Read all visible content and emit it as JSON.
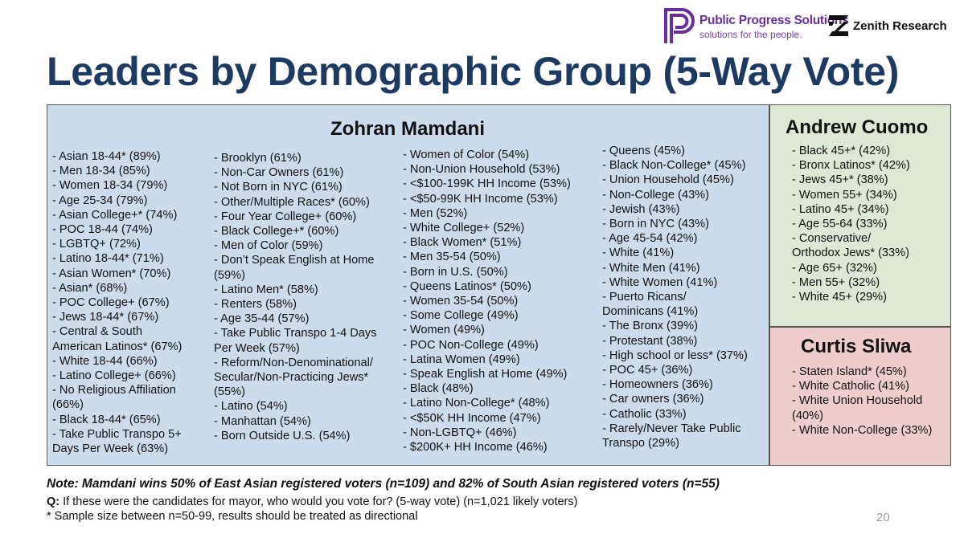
{
  "logos": {
    "pps_name": "Public Progress Solutions",
    "pps_tagline": "solutions for the people.",
    "zenith_name": "Zenith Research"
  },
  "title": "Leaders by Demographic Group (5-Way Vote)",
  "mamdani": {
    "name": "Zohran Mamdani",
    "col1": [
      "- Asian 18-44* (89%)",
      "- Men 18-34 (85%)",
      "- Women 18-34 (79%)",
      "- Age 25-34 (79%)",
      "- Asian College+* (74%)",
      "- POC 18-44 (74%)",
      "- LGBTQ+ (72%)",
      "- Latino 18-44* (71%)",
      "- Asian Women* (70%)",
      "- Asian* (68%)",
      "- POC College+ (67%)",
      "- Jews 18-44* (67%)",
      "- Central & South",
      "American Latinos* (67%)",
      "- White 18-44 (66%)",
      "- Latino College+ (66%)",
      "- No Religious Affiliation",
      "(66%)",
      "- Black 18-44* (65%)",
      "- Take Public Transpo 5+",
      "Days Per Week (63%)"
    ],
    "col2": [
      "- Brooklyn (61%)",
      "- Non-Car Owners (61%)",
      "- Not Born in NYC (61%)",
      "- Other/Multiple Races* (60%)",
      "- Four Year College+ (60%)",
      "- Black College+* (60%)",
      "- Men of Color (59%)",
      "- Don’t Speak English at Home",
      "(59%)",
      "- Latino Men* (58%)",
      "- Renters (58%)",
      "- Age 35-44 (57%)",
      "- Take Public Transpo 1-4 Days",
      "Per Week (57%)",
      "- Reform/Non-Denominational/",
      "Secular/Non-Practicing Jews*",
      "(55%)",
      "- Latino (54%)",
      "- Manhattan (54%)",
      "- Born Outside U.S. (54%)"
    ],
    "col3": [
      "- Women of Color (54%)",
      "- Non-Union Household (53%)",
      "- <$100-199K HH Income (53%)",
      "- <$50-99K HH Income (53%)",
      "- Men (52%)",
      "- White College+ (52%)",
      "- Black Women* (51%)",
      "- Men 35-54 (50%)",
      "- Born in U.S. (50%)",
      "- Queens Latinos* (50%)",
      "- Women 35-54 (50%)",
      "- Some College (49%)",
      "- Women (49%)",
      "- POC Non-College (49%)",
      "- Latina Women (49%)",
      "- Speak English at Home (49%)",
      "- Black (48%)",
      "- Latino Non-College* (48%)",
      "- <$50K HH Income (47%)",
      "- Non-LGBTQ+ (46%)",
      "- $200K+ HH Income (46%)"
    ],
    "col4": [
      "- Queens (45%)",
      "- Black Non-College* (45%)",
      "- Union Household (45%)",
      "- Non-College (43%)",
      "- Jewish (43%)",
      "- Born in NYC (43%)",
      "- Age 45-54 (42%)",
      "- White (41%)",
      "- White Men (41%)",
      "- White Women (41%)",
      "- Puerto Ricans/",
      "Dominicans (41%)",
      "- The Bronx (39%)",
      "- Protestant (38%)",
      "- High school or less* (37%)",
      "- POC 45+ (36%)",
      "- Homeowners (36%)",
      "- Car owners (36%)",
      "- Catholic (33%)",
      "- Rarely/Never Take Public",
      "Transpo (29%)"
    ]
  },
  "cuomo": {
    "name": "Andrew Cuomo",
    "items": [
      "- Black 45+* (42%)",
      "- Bronx Latinos* (42%)",
      "- Jews 45+* (38%)",
      "- Women 55+ (34%)",
      "- Latino 45+ (34%)",
      "- Age 55-64 (33%)",
      "- Conservative/",
      "Orthodox Jews* (33%)",
      "- Age 65+ (32%)",
      "- Men 55+ (32%)",
      "- White 45+ (29%)"
    ]
  },
  "sliwa": {
    "name": "Curtis Sliwa",
    "items": [
      "- Staten Island* (45%)",
      "- White Catholic (41%)",
      "- White Union Household",
      "(40%)",
      "- White Non-College (33%)"
    ]
  },
  "note": "Note: Mamdani wins 50% of East Asian registered voters (n=109) and 82% of South Asian registered voters (n=55)",
  "question_label": "Q:",
  "question": " If these were the candidates for mayor, who would you vote for? (5-way vote) (n=1,021 likely voters)",
  "sample_note": "* Sample size between n=50-99, results should be treated as directional",
  "page_number": "20"
}
